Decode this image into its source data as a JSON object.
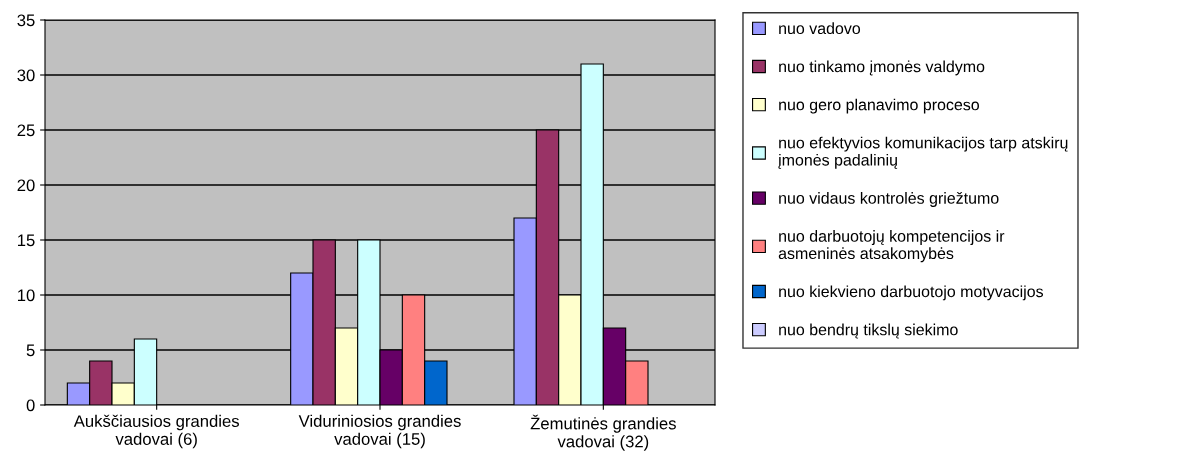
{
  "chart_data": {
    "type": "bar",
    "categories": [
      "Aukščiausios grandies\nvadovai (6)",
      "Viduriniosios grandies\nvadovai (15)",
      "Žemutinės grandies\nvadovai (32)"
    ],
    "series": [
      {
        "name": "nuo vadovo",
        "color": "#9999ff",
        "values": [
          2,
          12,
          17
        ]
      },
      {
        "name": "nuo tinkamo įmonės valdymo",
        "color": "#993366",
        "values": [
          4,
          15,
          25
        ]
      },
      {
        "name": "nuo gero planavimo proceso",
        "color": "#ffffcc",
        "values": [
          2,
          7,
          10
        ]
      },
      {
        "name": "nuo efektyvios komunikacijos tarp atskirų\nįmonės padalinių",
        "color": "#ccffff",
        "values": [
          6,
          15,
          31
        ]
      },
      {
        "name": "nuo vidaus kontrolės griežtumo",
        "color": "#660066",
        "values": [
          null,
          5,
          7
        ]
      },
      {
        "name": "nuo darbuotojų kompetencijos ir\nasmeninės atsakomybės",
        "color": "#ff8080",
        "values": [
          null,
          10,
          4
        ]
      },
      {
        "name": "nuo kiekvieno darbuotojo motyvacijos",
        "color": "#0066cc",
        "values": [
          null,
          4,
          null
        ]
      },
      {
        "name": "nuo bendrų tikslų siekimo",
        "color": "#ccccff",
        "values": [
          null,
          null,
          null
        ]
      }
    ],
    "ylim": [
      0,
      35
    ],
    "yticks": [
      0,
      5,
      10,
      15,
      20,
      25,
      30,
      35
    ],
    "grid": "y",
    "legend": "right"
  }
}
